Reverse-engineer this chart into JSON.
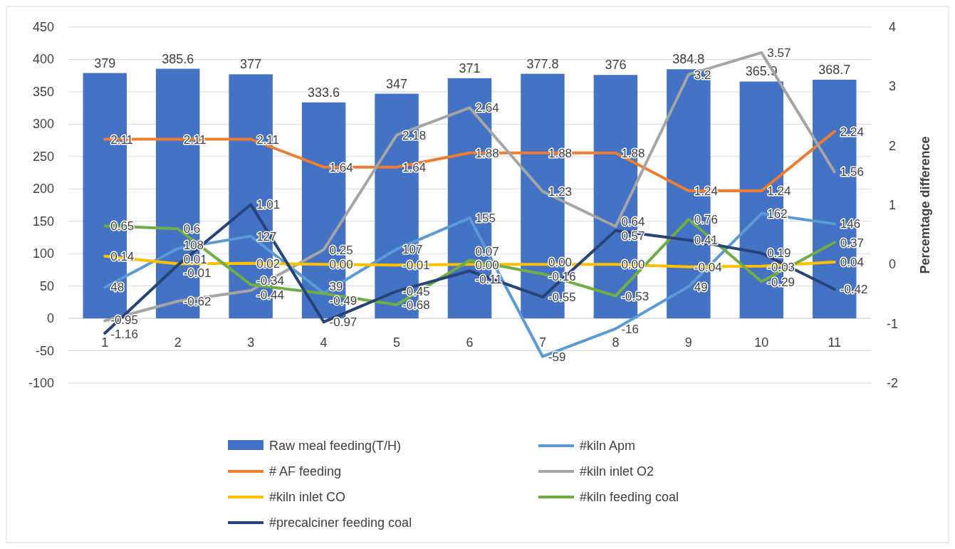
{
  "chart_data": {
    "type": "bar",
    "y2label": "Percemtage difference",
    "categories": [
      "1",
      "2",
      "3",
      "4",
      "5",
      "6",
      "7",
      "8",
      "9",
      "10",
      "11"
    ],
    "ylim": [
      -100,
      450
    ],
    "yticks": [
      -100,
      -50,
      0,
      50,
      100,
      150,
      200,
      250,
      300,
      350,
      400,
      450
    ],
    "y2lim": [
      -2,
      4
    ],
    "y2ticks": [
      -2,
      -1,
      0,
      1,
      2,
      3,
      4
    ],
    "grid": "y",
    "legend": "bottom",
    "line_style": "solid",
    "marker": "none",
    "series": [
      {
        "name": "Raw meal feeding(T/H)",
        "color": "#4472c4",
        "values": [
          379,
          385.6,
          377,
          333.6,
          347,
          371,
          377.8,
          376,
          384.8,
          365.9,
          368.7
        ],
        "value_labels": [
          "379",
          "385.6",
          "377",
          "333.6",
          "347",
          "371",
          "377.8",
          "376",
          "384.8",
          "365.9",
          "368.7"
        ]
      },
      {
        "name": "#kiln Apm",
        "type": "line",
        "color": "#5b9bd5",
        "values": [
          48,
          108,
          127,
          39,
          107,
          155,
          -59,
          -16,
          49,
          162,
          146
        ],
        "value_labels": [
          "48",
          "108",
          "127",
          "39",
          "107",
          "155",
          "-59",
          "-16",
          "49",
          "162",
          "146"
        ]
      },
      {
        "name": "# AF feeding",
        "type": "line",
        "axis": "y2",
        "color": "#ed7d31",
        "values": [
          2.11,
          2.11,
          2.11,
          1.64,
          1.64,
          1.88,
          1.88,
          1.88,
          1.24,
          1.24,
          2.24
        ],
        "value_labels": [
          "2.11",
          "2.11",
          "2.11",
          "1.64",
          "1.64",
          "1.88",
          "1.88",
          "1.88",
          "1.24",
          "1.24",
          "2.24"
        ]
      },
      {
        "name": "#kiln inlet O2",
        "type": "line",
        "axis": "y2",
        "color": "#a5a5a5",
        "values": [
          -0.95,
          -0.62,
          -0.44,
          0.25,
          2.18,
          2.64,
          1.23,
          0.64,
          3.2,
          3.57,
          1.56
        ],
        "value_labels": [
          "-0.95",
          "-0.62",
          "-0.44",
          "0.25",
          "2.18",
          "2.64",
          "1.23",
          "0.64",
          "3.2",
          "3.57",
          "1.56"
        ]
      },
      {
        "name": "#kiln inlet CO",
        "type": "line",
        "axis": "y2",
        "color": "#ffc000",
        "values": [
          0.14,
          0.01,
          0.02,
          0,
          -0.01,
          0,
          0,
          0,
          -0.04,
          -0.03,
          0.04
        ],
        "value_labels": [
          "0.14",
          "0.01",
          "0.02",
          "0.00",
          "-0.01",
          "0.00",
          "0.00",
          "0.00",
          "-0.04",
          "-0.03",
          "0.04"
        ]
      },
      {
        "name": "#kiln feeding coal",
        "type": "line",
        "axis": "y2",
        "color": "#70ad47",
        "values": [
          0.65,
          0.6,
          -0.34,
          -0.49,
          -0.68,
          0.07,
          -0.16,
          -0.53,
          0.76,
          -0.29,
          0.37
        ],
        "value_labels": [
          "0.65",
          "0.6",
          "-0.34",
          "-0.49",
          "-0.68",
          "0.07",
          "-0.16",
          "-0.53",
          "0.76",
          "-0.29",
          "0.37"
        ]
      },
      {
        "name": "#precalciner feeding coal",
        "type": "line",
        "axis": "y2",
        "color": "#264478",
        "values": [
          -1.16,
          -0.01,
          1.01,
          -0.97,
          -0.45,
          -0.11,
          -0.55,
          0.57,
          0.41,
          0.19,
          -0.42
        ],
        "value_labels": [
          "-1.16",
          "-0.01",
          "1.01",
          "-0.97",
          "-0.45",
          "-0.11",
          "-0.55",
          "0.57",
          "0.41",
          "0.19",
          "-0.42"
        ]
      }
    ]
  }
}
